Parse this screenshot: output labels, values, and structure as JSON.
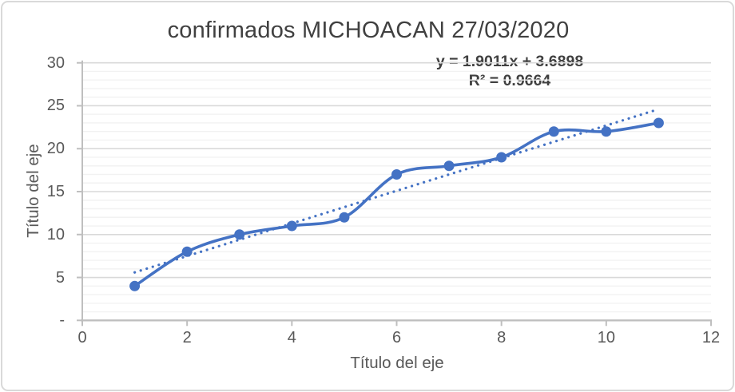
{
  "frame": {
    "background": "#ffffff",
    "border_color": "#d9d9d9"
  },
  "chart_data": {
    "type": "line",
    "title": "confirmados MICHOACAN 27/03/2020",
    "x": [
      1,
      2,
      3,
      4,
      5,
      6,
      7,
      8,
      9,
      10,
      11
    ],
    "series": [
      {
        "name": "confirmados",
        "values": [
          4,
          8,
          10,
          11,
          12,
          17,
          18,
          19,
          22,
          22,
          23
        ],
        "color": "#4472C4",
        "marker": "circle",
        "smooth": true
      }
    ],
    "trendline": {
      "type": "linear",
      "slope": 1.9011,
      "intercept": 3.6898,
      "r_squared": 0.9664,
      "equation_label": "y = 1.9011x + 3.6898",
      "r2_label": "R² = 0.9664",
      "style": "dotted",
      "color": "#4472C4",
      "x_start": 1,
      "x_end": 11
    },
    "xlabel": "Título del eje",
    "ylabel": "Título del eje",
    "xlim": [
      0,
      12
    ],
    "ylim": [
      0,
      30
    ],
    "x_tick_values": [
      0,
      2,
      4,
      6,
      8,
      10,
      12
    ],
    "x_tick_labels": [
      "0",
      "2",
      "4",
      "6",
      "8",
      "10",
      "12"
    ],
    "y_tick_values": [
      0,
      5,
      10,
      15,
      20,
      25,
      30
    ],
    "y_tick_labels": [
      "-",
      "5",
      "10",
      "15",
      "20",
      "25",
      "30"
    ],
    "grid": {
      "major_every": 5,
      "minor_every": 1,
      "major_color": "#d9d9d9",
      "minor_color": "#f2f2f2"
    },
    "axis_color": "#bfbfbf",
    "text_colors": {
      "title": "#404040",
      "axis": "#595959",
      "equation": "#404040"
    },
    "legend": "none"
  }
}
